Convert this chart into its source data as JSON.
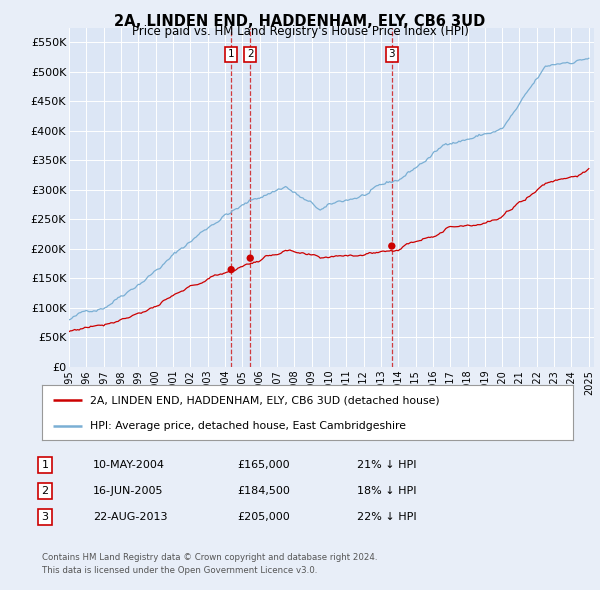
{
  "title1": "2A, LINDEN END, HADDENHAM, ELY, CB6 3UD",
  "title2": "Price paid vs. HM Land Registry's House Price Index (HPI)",
  "ylim": [
    0,
    575000
  ],
  "yticks": [
    0,
    50000,
    100000,
    150000,
    200000,
    250000,
    300000,
    350000,
    400000,
    450000,
    500000,
    550000
  ],
  "ytick_labels": [
    "£0",
    "£50K",
    "£100K",
    "£150K",
    "£200K",
    "£250K",
    "£300K",
    "£350K",
    "£400K",
    "£450K",
    "£500K",
    "£550K"
  ],
  "background_color": "#e8eef8",
  "plot_bg_color": "#dce6f5",
  "grid_color": "#ffffff",
  "sale_color": "#cc0000",
  "hpi_color": "#7aafd4",
  "sale_label": "2A, LINDEN END, HADDENHAM, ELY, CB6 3UD (detached house)",
  "hpi_label": "HPI: Average price, detached house, East Cambridgeshire",
  "transactions": [
    {
      "num": 1,
      "date": "10-MAY-2004",
      "price": 165000,
      "price_str": "£165,000",
      "pct": "21%",
      "dir": "↓",
      "x_year": 2004.36
    },
    {
      "num": 2,
      "date": "16-JUN-2005",
      "price": 184500,
      "price_str": "£184,500",
      "pct": "18%",
      "dir": "↓",
      "x_year": 2005.46
    },
    {
      "num": 3,
      "date": "22-AUG-2013",
      "price": 205000,
      "price_str": "£205,000",
      "pct": "22%",
      "dir": "↓",
      "x_year": 2013.63
    }
  ],
  "footer1": "Contains HM Land Registry data © Crown copyright and database right 2024.",
  "footer2": "This data is licensed under the Open Government Licence v3.0.",
  "x_start": 1995,
  "x_end": 2025,
  "xticks": [
    1995,
    1996,
    1997,
    1998,
    1999,
    2000,
    2001,
    2002,
    2003,
    2004,
    2005,
    2006,
    2007,
    2008,
    2009,
    2010,
    2011,
    2012,
    2013,
    2014,
    2015,
    2016,
    2017,
    2018,
    2019,
    2020,
    2021,
    2022,
    2023,
    2024,
    2025
  ]
}
